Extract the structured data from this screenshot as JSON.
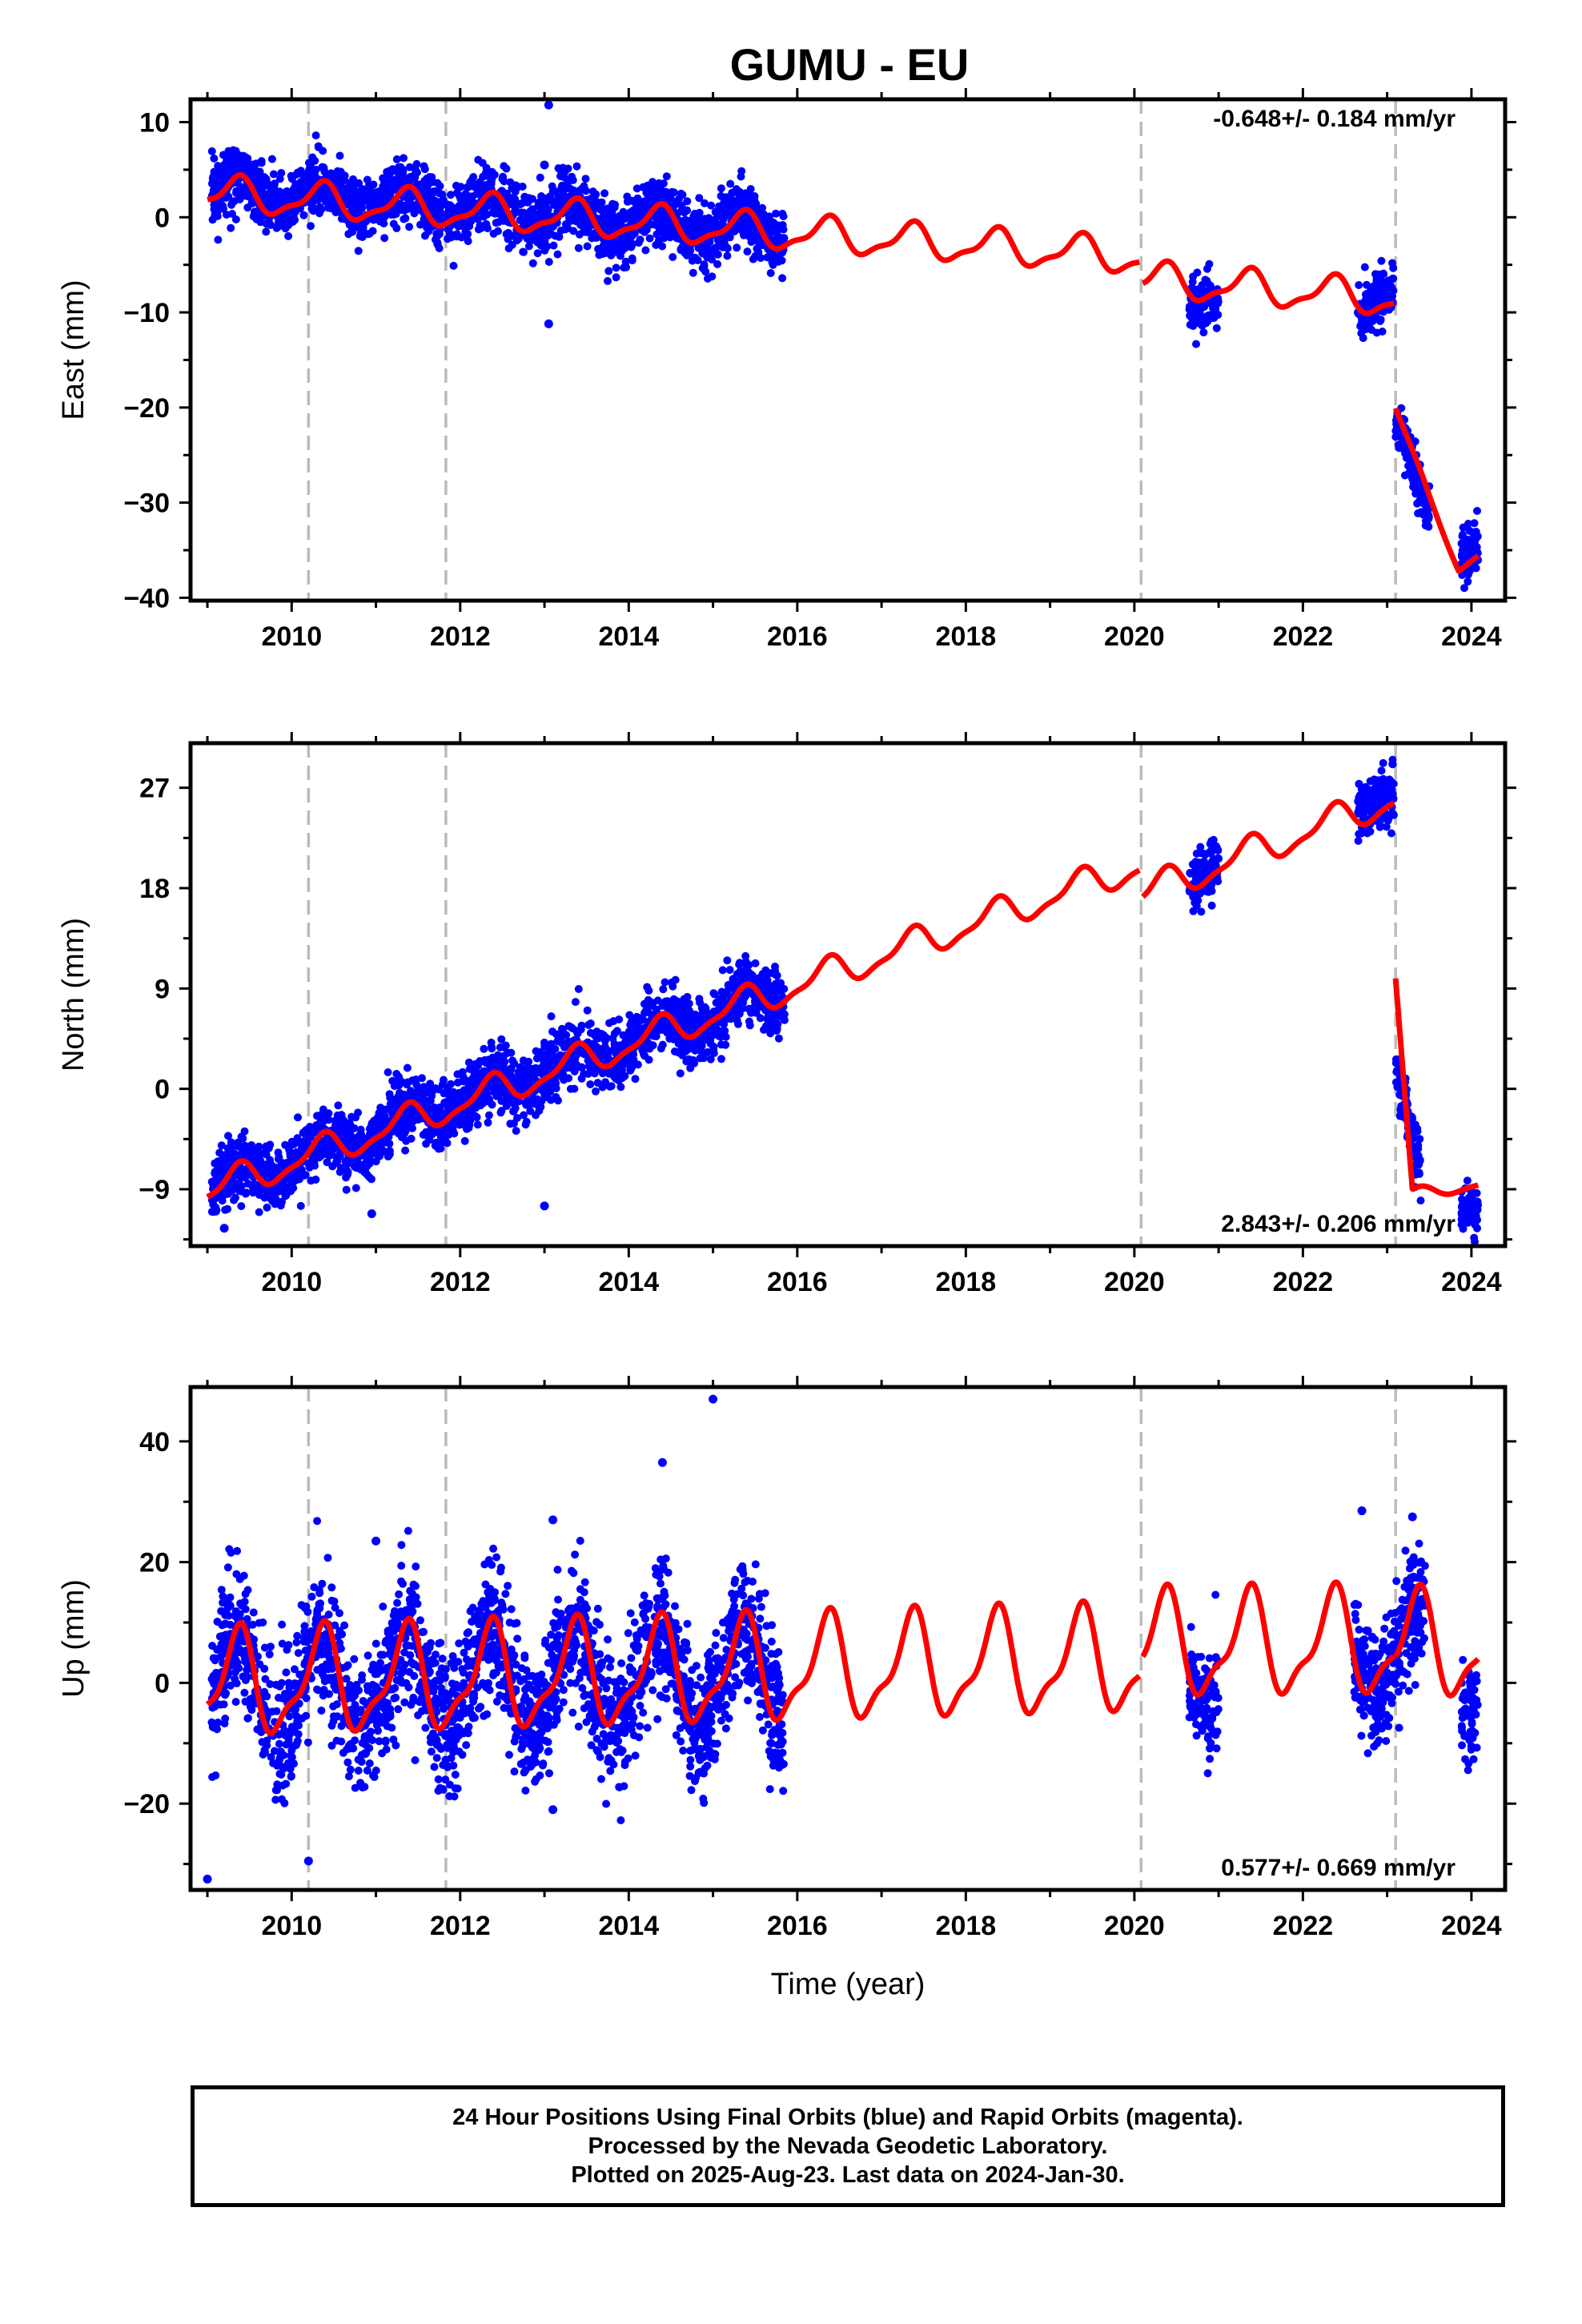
{
  "title": "GUMU - EU",
  "xlabel": "Time (year)",
  "footer": {
    "line1": "24 Hour Positions Using Final Orbits (blue) and Rapid Orbits (magenta).",
    "line2": "Processed by the Nevada Geodetic Laboratory.",
    "line3": "Plotted on 2025-Aug-23. Last data on 2024-Jan-30."
  },
  "colors": {
    "data": "#0000ff",
    "model": "#ff0000",
    "event_lines": "#bbbbbb",
    "axes": "#000000"
  },
  "chart_data": [
    {
      "type": "scatter",
      "component": "east",
      "ylabel": "East (mm)",
      "rate_label": "-0.648+/- 0.184 mm/yr",
      "rate_position": "top-right",
      "xlim": [
        2008.8,
        2024.4
      ],
      "ylim": [
        -40.3,
        12.4
      ],
      "xticks": [
        2010,
        2012,
        2014,
        2016,
        2018,
        2020,
        2022,
        2024
      ],
      "yticks": [
        -40,
        -30,
        -20,
        -10,
        0,
        10
      ],
      "ytick_labels": [
        "−40",
        "−30",
        "−20",
        "−10",
        "0",
        "10"
      ],
      "event_lines_x": [
        2010.2,
        2011.83,
        2020.08,
        2023.1
      ],
      "data_segments": [
        {
          "x0": 2009.05,
          "x1": 2015.85,
          "trend": [
            [
              2009.05,
              3.0
            ],
            [
              2015.85,
              -1.6
            ]
          ],
          "amp": 1.5,
          "scatter": 1.6
        },
        {
          "x0": 2020.65,
          "x1": 2021.0,
          "trend": [
            [
              2020.65,
              -8.8
            ],
            [
              2021.0,
              -7.8
            ]
          ],
          "amp": 0.5,
          "scatter": 1.3
        },
        {
          "x0": 2022.65,
          "x1": 2023.08,
          "trend": [
            [
              2022.65,
              -9.8
            ],
            [
              2023.08,
              -7.0
            ]
          ],
          "amp": 0.5,
          "scatter": 1.6
        },
        {
          "x0": 2023.1,
          "x1": 2023.5,
          "trend": [
            [
              2023.1,
              -21.5
            ],
            [
              2023.5,
              -31.0
            ]
          ],
          "amp": 0.3,
          "scatter": 1.2
        },
        {
          "x0": 2023.88,
          "x1": 2024.08,
          "trend": [
            [
              2023.88,
              -35.5
            ],
            [
              2024.08,
              -35.0
            ]
          ],
          "amp": 0.2,
          "scatter": 1.6
        }
      ],
      "outliers": [
        [
          2013.05,
          11.8
        ],
        [
          2013.05,
          -11.2
        ],
        [
          2013.0,
          5.5
        ]
      ],
      "model_segments": [
        {
          "x0": 2009.0,
          "x1": 2020.06,
          "trend": [
            [
              2009.0,
              2.5
            ],
            [
              2020.06,
              -4.2
            ]
          ],
          "amp": 1.7
        },
        {
          "x0": 2020.1,
          "x1": 2023.08,
          "trend": [
            [
              2020.1,
              -6.6
            ],
            [
              2023.08,
              -8.6
            ]
          ],
          "amp": 1.7
        },
        {
          "x0": 2023.1,
          "x1": 2024.08,
          "trend": [
            [
              2023.1,
              -20.0
            ],
            [
              2023.5,
              -29.5
            ],
            [
              2023.85,
              -37.0
            ],
            [
              2024.08,
              -35.5
            ]
          ],
          "amp": 0.3
        }
      ]
    },
    {
      "type": "scatter",
      "component": "north",
      "ylabel": "North (mm)",
      "rate_label": "2.843+/- 0.206 mm/yr",
      "rate_position": "bottom-right",
      "xlim": [
        2008.8,
        2024.4
      ],
      "ylim": [
        -14.1,
        31.0
      ],
      "xticks": [
        2010,
        2012,
        2014,
        2016,
        2018,
        2020,
        2022,
        2024
      ],
      "yticks": [
        -9,
        0,
        9,
        18,
        27
      ],
      "ytick_labels": [
        "−9",
        "0",
        "9",
        "18",
        "27"
      ],
      "event_lines_x": [
        2010.2,
        2011.83,
        2020.08,
        2023.1
      ],
      "data_segments": [
        {
          "x0": 2009.05,
          "x1": 2015.85,
          "trend": [
            [
              2009.05,
              -9.0
            ],
            [
              2015.85,
              9.0
            ]
          ],
          "amp": 1.2,
          "scatter": 1.4
        },
        {
          "x0": 2020.65,
          "x1": 2021.0,
          "trend": [
            [
              2020.65,
              18.5
            ],
            [
              2021.0,
              21.0
            ]
          ],
          "amp": 0.5,
          "scatter": 1.2
        },
        {
          "x0": 2022.65,
          "x1": 2023.08,
          "trend": [
            [
              2022.65,
              25.0
            ],
            [
              2023.08,
              27.0
            ]
          ],
          "amp": 0.5,
          "scatter": 1.3
        },
        {
          "x0": 2023.1,
          "x1": 2023.4,
          "trend": [
            [
              2023.1,
              2.0
            ],
            [
              2023.4,
              -8.0
            ]
          ],
          "amp": 0.2,
          "scatter": 1.3
        },
        {
          "x0": 2023.88,
          "x1": 2024.08,
          "trend": [
            [
              2023.88,
              -10.5
            ],
            [
              2024.08,
              -11.5
            ]
          ],
          "amp": 0.2,
          "scatter": 1.0
        }
      ],
      "outliers": [
        [
          2013.0,
          -10.5
        ],
        [
          2010.95,
          -11.2
        ],
        [
          2009.2,
          -12.5
        ]
      ],
      "model_segments": [
        {
          "x0": 2009.0,
          "x1": 2020.06,
          "trend": [
            [
              2009.0,
              -9.2
            ],
            [
              2020.06,
              20.0
            ]
          ],
          "amp": 1.3
        },
        {
          "x0": 2020.1,
          "x1": 2023.08,
          "trend": [
            [
              2020.1,
              17.5
            ],
            [
              2023.08,
              26.0
            ]
          ],
          "amp": 1.3
        },
        {
          "x0": 2023.1,
          "x1": 2024.08,
          "trend": [
            [
              2023.1,
              10.0
            ],
            [
              2023.3,
              -9.5
            ],
            [
              2024.08,
              -8.5
            ]
          ],
          "amp": 0.5
        }
      ]
    },
    {
      "type": "scatter",
      "component": "up",
      "ylabel": "Up (mm)",
      "rate_label": "0.577+/- 0.669 mm/yr",
      "rate_position": "bottom-right",
      "xlim": [
        2008.8,
        2024.4
      ],
      "ylim": [
        -34.3,
        49.0
      ],
      "xticks": [
        2010,
        2012,
        2014,
        2016,
        2018,
        2020,
        2022,
        2024
      ],
      "yticks": [
        -20,
        0,
        20,
        40
      ],
      "ytick_labels": [
        "−20",
        "0",
        "20",
        "40"
      ],
      "event_lines_x": [
        2010.2,
        2011.83,
        2020.08,
        2023.1
      ],
      "data_segments": [
        {
          "x0": 2009.05,
          "x1": 2015.85,
          "trend": [
            [
              2009.05,
              -1.0
            ],
            [
              2015.85,
              1.5
            ]
          ],
          "amp": 8.0,
          "scatter": 5.5
        },
        {
          "x0": 2020.65,
          "x1": 2021.0,
          "trend": [
            [
              2020.65,
              2.0
            ],
            [
              2021.0,
              2.0
            ]
          ],
          "amp": 6.0,
          "scatter": 4.0
        },
        {
          "x0": 2022.6,
          "x1": 2023.45,
          "trend": [
            [
              2022.6,
              5.0
            ],
            [
              2023.45,
              5.0
            ]
          ],
          "amp": 6.0,
          "scatter": 5.0
        },
        {
          "x0": 2023.88,
          "x1": 2024.08,
          "trend": [
            [
              2023.88,
              -3.0
            ],
            [
              2024.08,
              -3.0
            ]
          ],
          "amp": 2.0,
          "scatter": 4.0
        }
      ],
      "outliers": [
        [
          2015.0,
          47.0
        ],
        [
          2014.4,
          36.5
        ],
        [
          2013.1,
          27.0
        ],
        [
          2011.0,
          23.5
        ],
        [
          2009.0,
          -32.5
        ],
        [
          2010.2,
          -29.5
        ],
        [
          2013.1,
          -21.0
        ],
        [
          2022.7,
          28.5
        ],
        [
          2023.3,
          27.5
        ]
      ],
      "model_segments": [
        {
          "x0": 2009.0,
          "x1": 2020.06,
          "trend": [
            [
              2009.0,
              -0.5
            ],
            [
              2020.06,
              3.5
            ]
          ],
          "amp": 8.0
        },
        {
          "x0": 2020.1,
          "x1": 2023.08,
          "trend": [
            [
              2020.1,
              6.0
            ],
            [
              2023.08,
              6.5
            ]
          ],
          "amp": 8.0
        },
        {
          "x0": 2023.1,
          "x1": 2024.08,
          "trend": [
            [
              2023.1,
              6.0
            ],
            [
              2024.08,
              6.0
            ]
          ],
          "amp": 8.0
        }
      ]
    }
  ]
}
